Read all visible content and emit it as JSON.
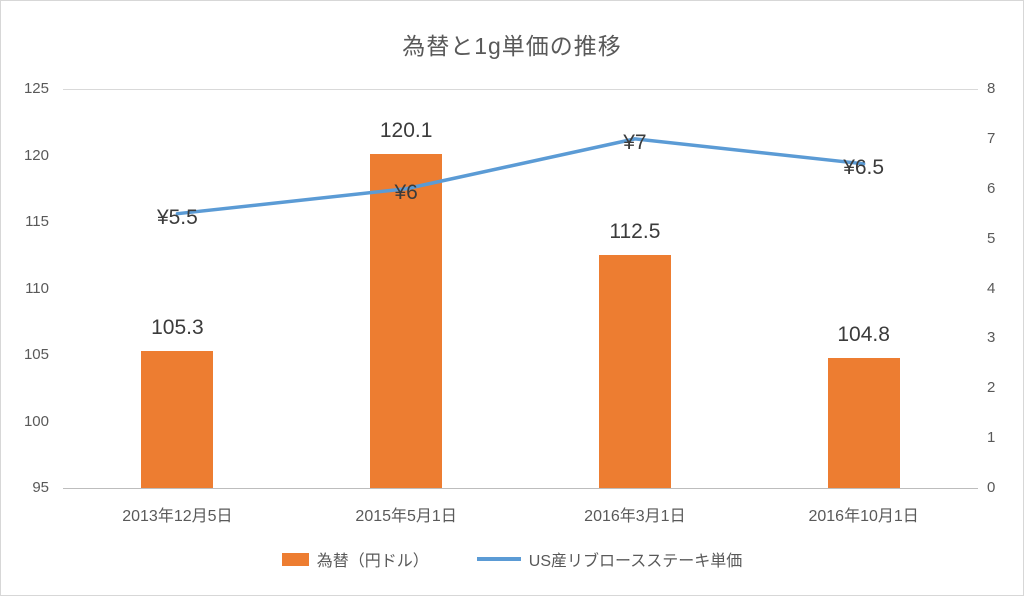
{
  "chart": {
    "title": "為替と1g単価の推移"
  },
  "chart_data": {
    "type": "combo",
    "title": "為替と1g単価の推移",
    "categories": [
      "2013年12月5日",
      "2015年5月1日",
      "2016年3月1日",
      "2016年10月1日"
    ],
    "series": [
      {
        "name": "為替（円ドル）",
        "type": "bar",
        "axis": "left",
        "color": "#ED7D31",
        "values": [
          105.3,
          120.1,
          112.5,
          104.8
        ],
        "labels": [
          "105.3",
          "120.1",
          "112.5",
          "104.8"
        ]
      },
      {
        "name": "US産リブロースステーキ単価",
        "type": "line",
        "axis": "right",
        "color": "#5B9BD5",
        "values": [
          5.5,
          6,
          7,
          6.5
        ],
        "labels": [
          "¥5.5",
          "¥6",
          "¥7",
          "¥6.5"
        ]
      }
    ],
    "left_axis": {
      "min": 95,
      "max": 125,
      "ticks": [
        95,
        100,
        105,
        110,
        115,
        120,
        125
      ]
    },
    "right_axis": {
      "min": 0,
      "max": 8,
      "ticks": [
        0,
        1,
        2,
        3,
        4,
        5,
        6,
        7,
        8
      ]
    },
    "grid": "top-gridline-and-bottom-axis-only",
    "legend_position": "bottom"
  }
}
